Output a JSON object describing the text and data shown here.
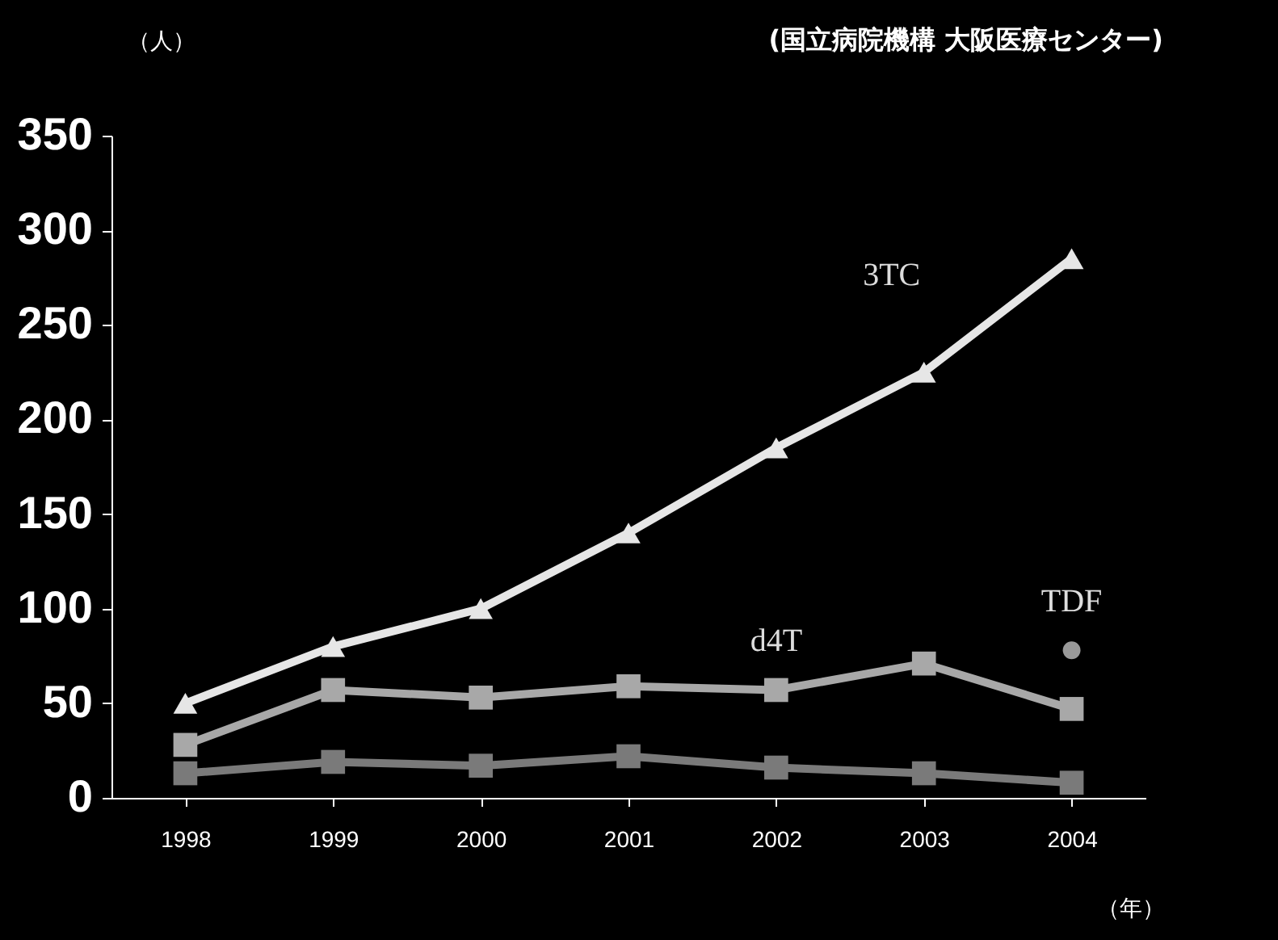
{
  "chart_data": {
    "type": "line",
    "ylabel": "（人）",
    "xlabel": "（年）",
    "annotations": [
      "(国立病院機構 大阪医療センター)"
    ],
    "categories": [
      "1998",
      "1999",
      "2000",
      "2001",
      "2002",
      "2003",
      "2004"
    ],
    "series": [
      {
        "name": "3TC",
        "color": "#e6e6e6",
        "marker": "triangle",
        "values": [
          50,
          80,
          100,
          140,
          185,
          225,
          285
        ]
      },
      {
        "name": "d4T",
        "color": "#a8a8a8",
        "marker": "square",
        "values": [
          28,
          57,
          53,
          59,
          57,
          71,
          47
        ]
      },
      {
        "color": "#7a7a7a",
        "marker": "square",
        "values": [
          13,
          19,
          17,
          22,
          16,
          13,
          8
        ]
      },
      {
        "name": "TDF",
        "type": "scatter",
        "color": "#999999",
        "marker": "circle",
        "values": [
          null,
          null,
          null,
          null,
          null,
          null,
          78
        ]
      }
    ],
    "ylim": [
      0,
      350
    ],
    "yticks": [
      0,
      50,
      100,
      150,
      200,
      250,
      300,
      350
    ],
    "grid": false
  }
}
